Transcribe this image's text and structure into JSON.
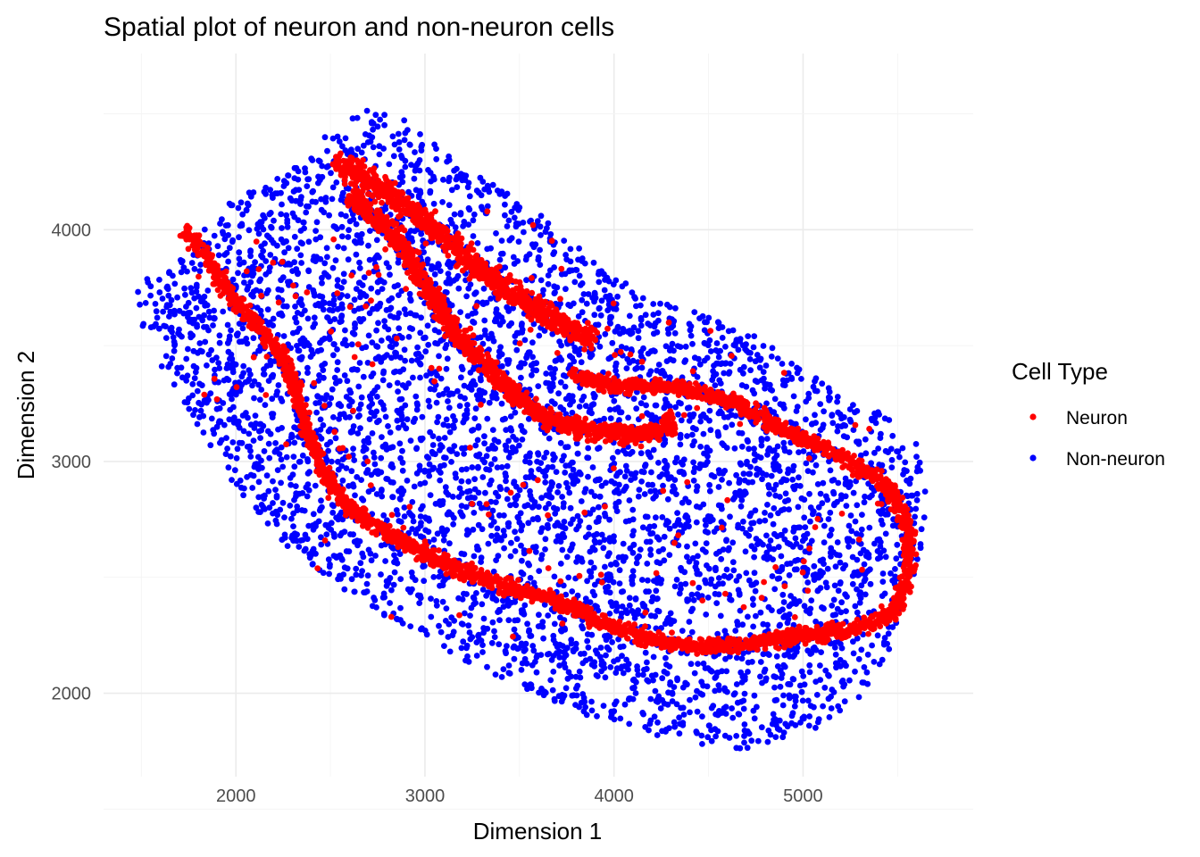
{
  "chart_data": {
    "type": "scatter",
    "title": "Spatial plot of neuron and non-neuron cells",
    "xlabel": "Dimension 1",
    "ylabel": "Dimension 2",
    "xlim": [
      1300,
      5900
    ],
    "ylim": [
      1640,
      4760
    ],
    "x_ticks": [
      2000,
      3000,
      4000,
      5000
    ],
    "y_ticks": [
      2000,
      3000,
      4000
    ],
    "x_tick_labels": [
      "2000",
      "3000",
      "4000",
      "5000"
    ],
    "y_tick_labels": [
      "2000",
      "3000",
      "4000"
    ],
    "grid": true,
    "legend_title": "Cell Type",
    "legend_position": "right",
    "series": [
      {
        "name": "Neuron",
        "color": "#ff0000",
        "bands": [
          {
            "path": [
              [
                2520,
                4300
              ],
              [
                2700,
                4220
              ],
              [
                3000,
                4040
              ],
              [
                3300,
                3820
              ],
              [
                3600,
                3650
              ],
              [
                3900,
                3520
              ]
            ],
            "width": 75,
            "density": 0.5
          },
          {
            "path": [
              [
                2600,
                4150
              ],
              [
                2850,
                3970
              ],
              [
                3000,
                3760
              ],
              [
                3150,
                3560
              ],
              [
                3400,
                3350
              ],
              [
                3650,
                3180
              ],
              [
                3900,
                3130
              ],
              [
                4150,
                3110
              ],
              [
                4320,
                3170
              ]
            ],
            "width": 60,
            "density": 0.55
          },
          {
            "path": [
              [
                3750,
                3380
              ],
              [
                4000,
                3330
              ],
              [
                4300,
                3320
              ],
              [
                4600,
                3270
              ],
              [
                4900,
                3140
              ],
              [
                5200,
                3020
              ],
              [
                5450,
                2900
              ],
              [
                5560,
                2720
              ],
              [
                5560,
                2520
              ],
              [
                5480,
                2350
              ],
              [
                5280,
                2270
              ],
              [
                5100,
                2260
              ],
              [
                4900,
                2240
              ],
              [
                4700,
                2210
              ],
              [
                4450,
                2200
              ],
              [
                4200,
                2230
              ],
              [
                3950,
                2300
              ],
              [
                3700,
                2400
              ],
              [
                3400,
                2470
              ],
              [
                3150,
                2540
              ],
              [
                2900,
                2650
              ],
              [
                2700,
                2740
              ],
              [
                2550,
                2840
              ],
              [
                2450,
                2980
              ],
              [
                2380,
                3120
              ],
              [
                2330,
                3280
              ],
              [
                2250,
                3450
              ],
              [
                2120,
                3580
              ],
              [
                1950,
                3730
              ],
              [
                1850,
                3880
              ],
              [
                1720,
                4000
              ]
            ],
            "width": 50,
            "density": 0.4
          }
        ],
        "scatter_box": [
          [
            1800,
            5500
          ],
          [
            2200,
            4100
          ]
        ],
        "scatter_count": 160,
        "seed": 11
      },
      {
        "name": "Non-neuron",
        "color": "#0000ff",
        "region": [
          [
            1480,
            3760
          ],
          [
            1600,
            3840
          ],
          [
            1760,
            3920
          ],
          [
            1900,
            4080
          ],
          [
            2100,
            4180
          ],
          [
            2300,
            4260
          ],
          [
            2450,
            4400
          ],
          [
            2680,
            4520
          ],
          [
            2880,
            4480
          ],
          [
            3050,
            4380
          ],
          [
            3250,
            4260
          ],
          [
            3450,
            4160
          ],
          [
            3650,
            4040
          ],
          [
            3900,
            3860
          ],
          [
            4150,
            3720
          ],
          [
            4450,
            3640
          ],
          [
            4750,
            3540
          ],
          [
            4950,
            3430
          ],
          [
            5150,
            3320
          ],
          [
            5400,
            3220
          ],
          [
            5620,
            3060
          ],
          [
            5660,
            2860
          ],
          [
            5620,
            2600
          ],
          [
            5530,
            2330
          ],
          [
            5400,
            2080
          ],
          [
            5220,
            1910
          ],
          [
            5000,
            1820
          ],
          [
            4700,
            1760
          ],
          [
            4350,
            1780
          ],
          [
            4050,
            1860
          ],
          [
            3750,
            1930
          ],
          [
            3450,
            2050
          ],
          [
            3150,
            2160
          ],
          [
            2850,
            2300
          ],
          [
            2550,
            2460
          ],
          [
            2250,
            2650
          ],
          [
            2000,
            2890
          ],
          [
            1800,
            3150
          ],
          [
            1600,
            3420
          ],
          [
            1480,
            3620
          ]
        ],
        "count": 5000,
        "seed": 7
      }
    ]
  }
}
